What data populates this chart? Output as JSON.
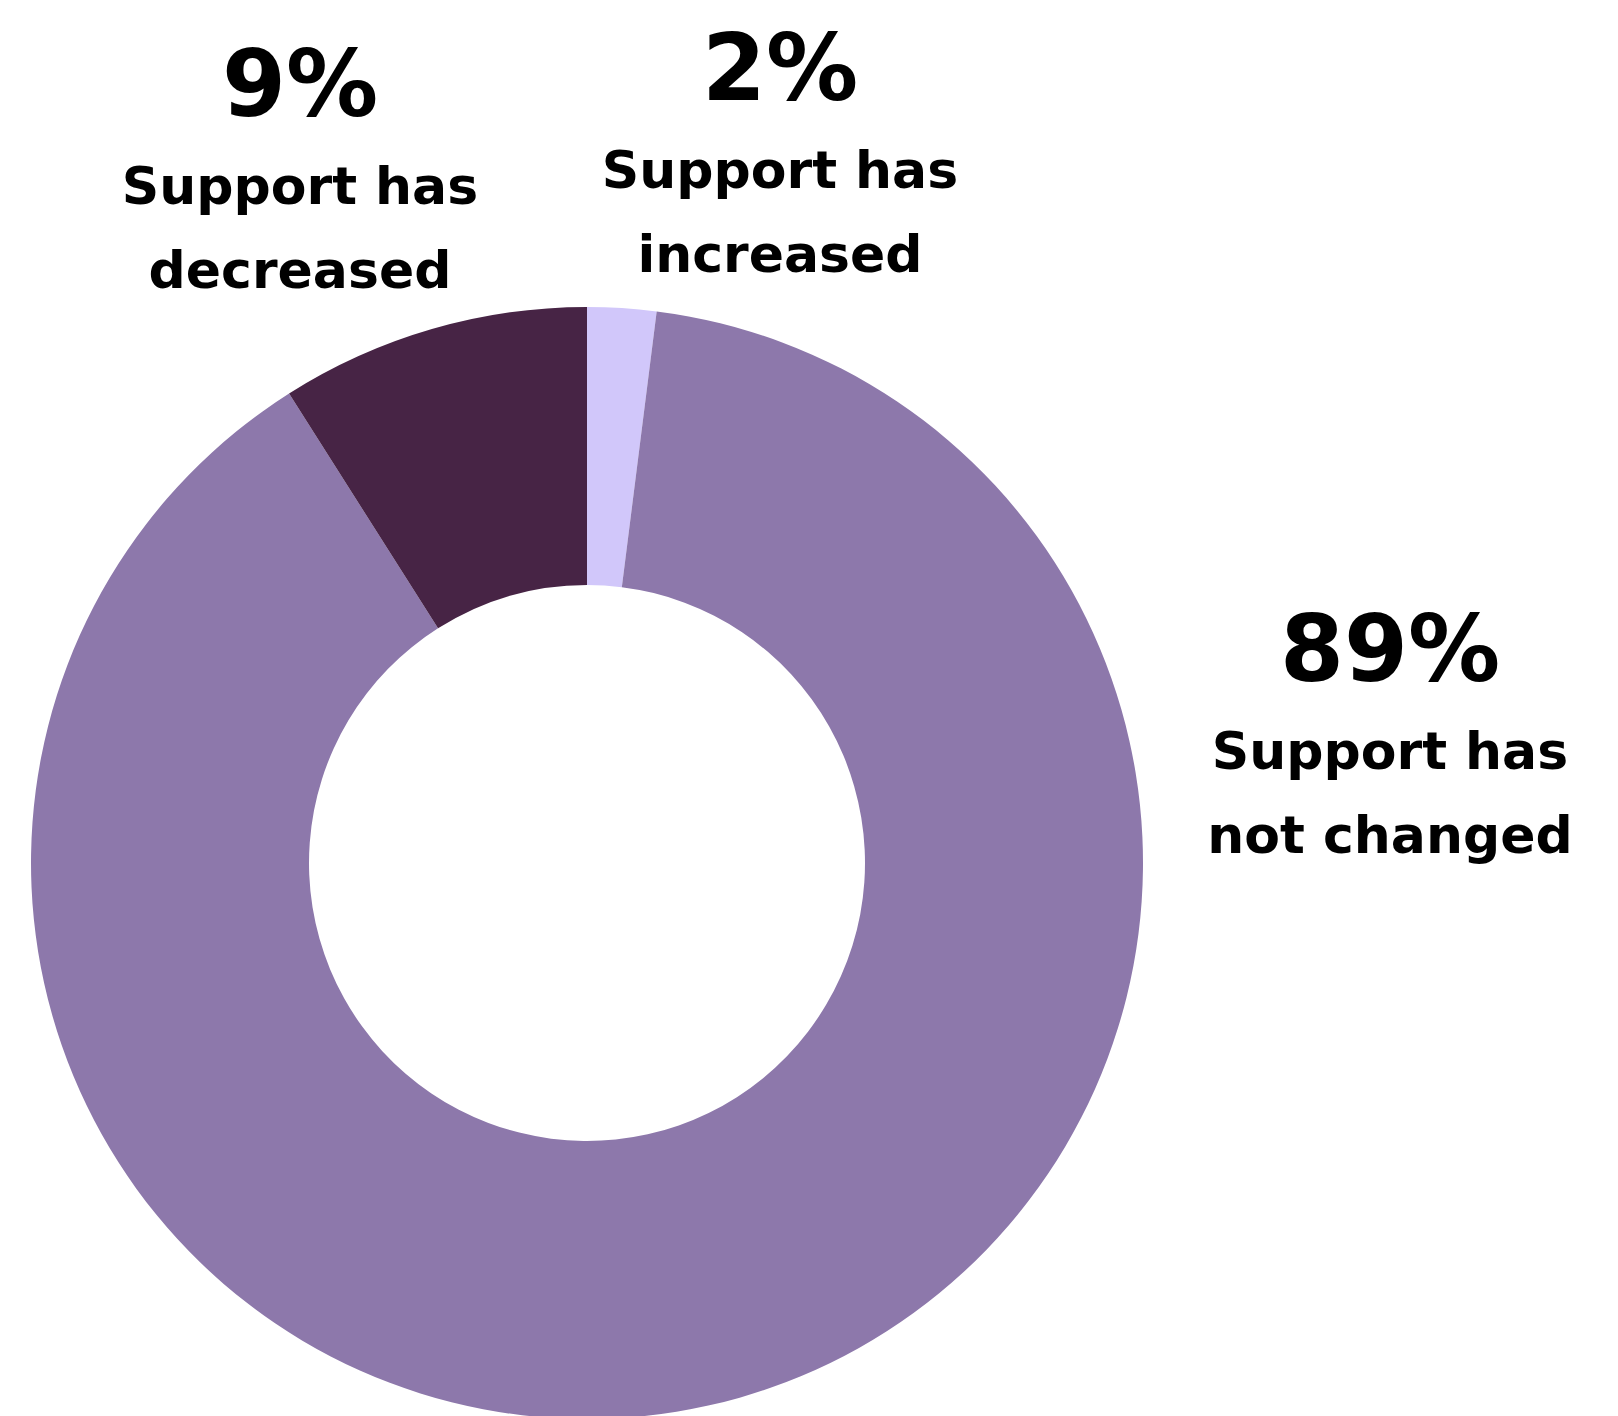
{
  "chart_data": {
    "type": "donut",
    "categories": [
      "Support has increased",
      "Support has not changed",
      "Support has decreased"
    ],
    "values": [
      2,
      89,
      9
    ],
    "colors": [
      "#d1c7fa",
      "#8d78ab",
      "#472445"
    ],
    "value_labels": [
      "2%",
      "89%",
      "9%"
    ],
    "legend": false
  }
}
